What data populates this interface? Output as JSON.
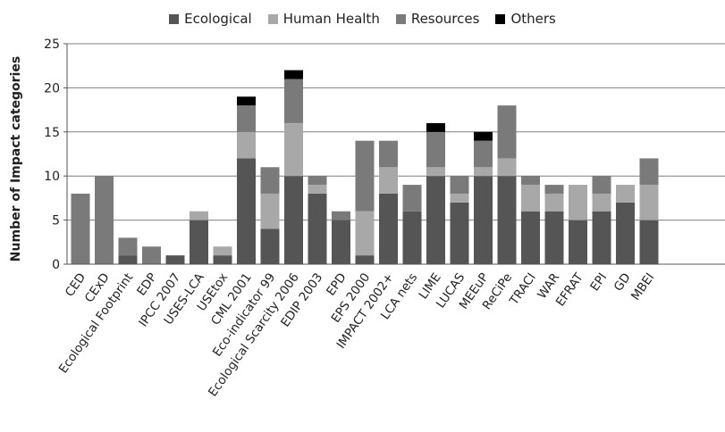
{
  "chart_data": {
    "type": "bar",
    "stacked": true,
    "ylabel": "Number of Impact categories",
    "xlabel": "",
    "ylim": [
      0,
      25
    ],
    "yticks": [
      0,
      5,
      10,
      15,
      20,
      25
    ],
    "grid": true,
    "legend_position": "top",
    "categories": [
      "CED",
      "CExD",
      "Ecological Footprint",
      "EDP",
      "IPCC 2007",
      "USES-LCA",
      "USEtox",
      "CML 2001",
      "Eco-indicator 99",
      "Ecological Scarcity 2006",
      "EDIP 2003",
      "EPD",
      "EPS 2000",
      "IMPACT 2002+",
      "LCA nets",
      "LIME",
      "LUCAS",
      "MEEuP",
      "ReCiPe",
      "TRACI",
      "WAR",
      "EFRAT",
      "EPI",
      "GD",
      "MBEI"
    ],
    "series": [
      {
        "name": "Ecological",
        "color": "#555555",
        "values": [
          0,
          0,
          1,
          0,
          1,
          5,
          1,
          12,
          4,
          10,
          8,
          5,
          1,
          8,
          6,
          10,
          7,
          10,
          10,
          6,
          6,
          5,
          6,
          7,
          5
        ]
      },
      {
        "name": "Human Health",
        "color": "#a8a8a8",
        "values": [
          0,
          0,
          0,
          0,
          0,
          1,
          1,
          3,
          4,
          6,
          1,
          0,
          5,
          3,
          0,
          1,
          1,
          1,
          2,
          3,
          2,
          4,
          2,
          2,
          4
        ]
      },
      {
        "name": "Resources",
        "color": "#7a7a7a",
        "values": [
          8,
          10,
          2,
          2,
          0,
          0,
          0,
          3,
          3,
          5,
          1,
          1,
          8,
          3,
          3,
          4,
          2,
          3,
          6,
          1,
          1,
          0,
          2,
          0,
          3
        ]
      },
      {
        "name": "Others",
        "color": "#000000",
        "values": [
          0,
          0,
          0,
          0,
          0,
          0,
          0,
          1,
          0,
          1,
          0,
          0,
          0,
          0,
          0,
          1,
          0,
          1,
          0,
          0,
          0,
          0,
          0,
          0,
          0
        ]
      }
    ]
  }
}
